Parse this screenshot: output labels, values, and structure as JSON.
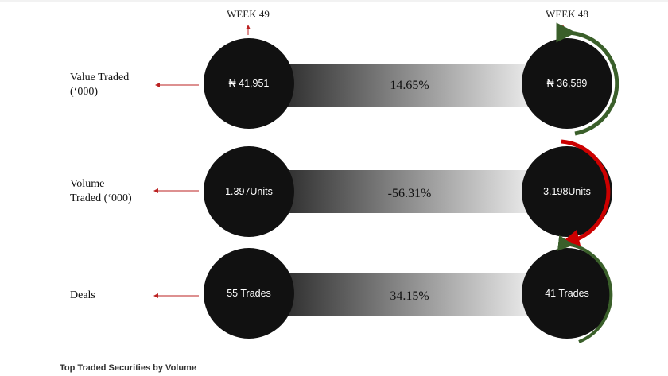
{
  "headers": {
    "left": "WEEK 49",
    "right": "WEEK 48"
  },
  "rows": [
    {
      "label_lines": [
        "Value Traded",
        "(‘000)"
      ],
      "week49": "₦ 41,951",
      "week48": "₦ 36,589",
      "change": "14.65%"
    },
    {
      "label_lines": [
        "Volume",
        "Traded (‘000)"
      ],
      "week49": "1.397Units",
      "week48": "3.198Units",
      "change": "-56.31%"
    },
    {
      "label_lines": [
        "Deals"
      ],
      "week49": "55 Trades",
      "week48": "41 Trades",
      "change": "34.15%"
    }
  ],
  "footer": "Top Traded Securities by Volume"
}
